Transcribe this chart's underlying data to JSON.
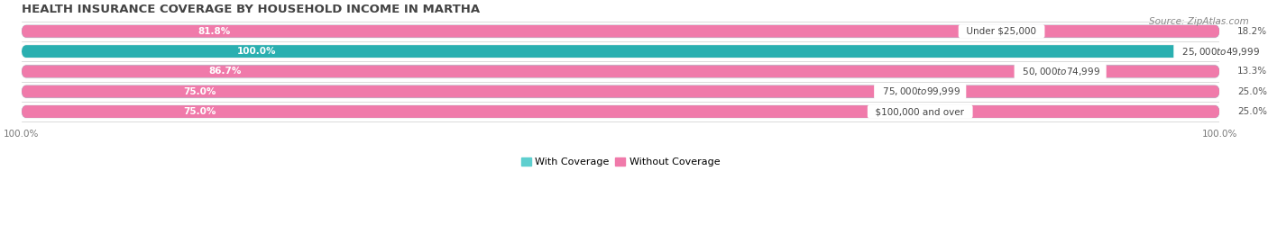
{
  "title": "HEALTH INSURANCE COVERAGE BY HOUSEHOLD INCOME IN MARTHA",
  "source": "Source: ZipAtlas.com",
  "categories": [
    "Under $25,000",
    "$25,000 to $49,999",
    "$50,000 to $74,999",
    "$75,000 to $99,999",
    "$100,000 and over"
  ],
  "with_coverage": [
    81.8,
    100.0,
    86.7,
    75.0,
    75.0
  ],
  "without_coverage": [
    18.2,
    0.0,
    13.3,
    25.0,
    25.0
  ],
  "color_with": "#5ecfcf",
  "color_with_100": "#2aafb0",
  "color_without": "#f07aaa",
  "color_without_light": "#f5b8ce",
  "bar_bg": "#ebebeb",
  "background": "#ffffff",
  "row_bg": "#f5f5f5",
  "legend_with": "With Coverage",
  "legend_without": "Without Coverage",
  "bar_height": 0.62,
  "title_fontsize": 9.5,
  "label_fontsize": 7.5,
  "cat_fontsize": 7.5,
  "tick_fontsize": 7.5,
  "source_fontsize": 7.5
}
